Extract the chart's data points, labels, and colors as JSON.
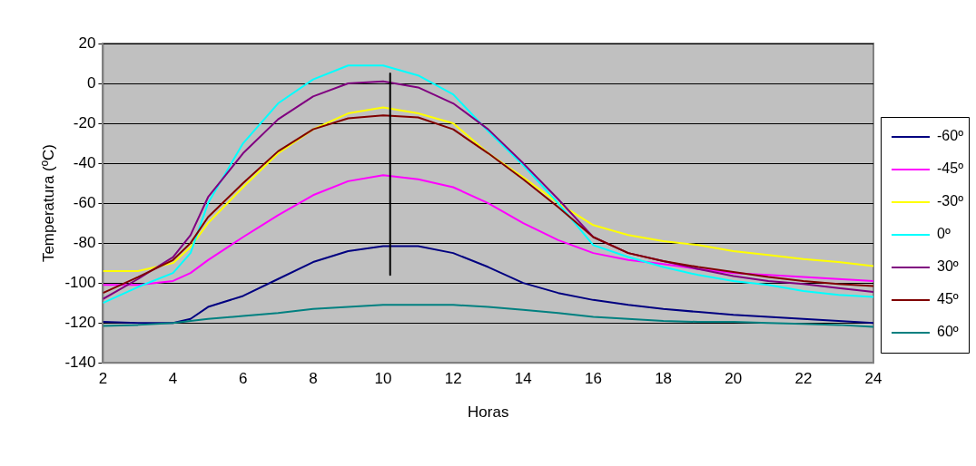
{
  "chart_data": {
    "type": "line",
    "xlabel": "Horas",
    "ylabel": "Temperatura (ºC)",
    "xlim": [
      2,
      24
    ],
    "xticks": [
      2,
      4,
      6,
      8,
      10,
      12,
      14,
      16,
      18,
      20,
      22,
      24
    ],
    "ylim": [
      -140,
      20
    ],
    "yticks": [
      -140,
      -120,
      -100,
      -80,
      -60,
      -40,
      -20,
      0,
      20
    ],
    "grid": "y",
    "legend": "right",
    "marker": "none",
    "line_style": "solid",
    "x": [
      2,
      3,
      4,
      4.5,
      5,
      6,
      7,
      8,
      9,
      10,
      11,
      12,
      13,
      14,
      15,
      16,
      17,
      18,
      19,
      20,
      21,
      22,
      23,
      24
    ],
    "series": [
      {
        "name": "-60º",
        "color": "#000080",
        "values": [
          -119.5,
          -120,
          -120,
          -118,
          -112,
          -106.5,
          -98,
          -89.5,
          -84,
          -81.5,
          -81.5,
          -85,
          -92,
          -100,
          -105,
          -108.5,
          -111,
          -113,
          -114.5,
          -116,
          -117,
          -118,
          -119,
          -120
        ]
      },
      {
        "name": "-45º",
        "color": "#ff00ff",
        "values": [
          -101,
          -101,
          -99,
          -95,
          -88.5,
          -77,
          -66,
          -56,
          -49,
          -46,
          -48,
          -52,
          -60,
          -70,
          -78.5,
          -85,
          -88.5,
          -90.5,
          -93,
          -95,
          -96,
          -97,
          -98,
          -99
        ]
      },
      {
        "name": "-30º",
        "color": "#ffff00",
        "values": [
          -94,
          -94,
          -90,
          -82,
          -70,
          -52,
          -35,
          -23,
          -15,
          -12,
          -15,
          -20,
          -35,
          -47,
          -60,
          -71,
          -76,
          -79,
          -81,
          -84,
          -86,
          -88,
          -89.5,
          -91.5
        ]
      },
      {
        "name": "0º",
        "color": "#00ffff",
        "values": [
          -110,
          -102,
          -95,
          -85,
          -60,
          -30,
          -10,
          2,
          9,
          9,
          4,
          -5.5,
          -24,
          -41,
          -60,
          -81,
          -87,
          -92,
          -96,
          -99,
          -101,
          -104,
          -106,
          -107
        ]
      },
      {
        "name": "30º",
        "color": "#800080",
        "values": [
          -108,
          -98,
          -87,
          -76,
          -57,
          -35,
          -18,
          -6.5,
          0,
          1,
          -2,
          -10,
          -23,
          -40,
          -58,
          -77,
          -85,
          -89,
          -93,
          -96.5,
          -99,
          -100.5,
          -102.5,
          -104.5
        ]
      },
      {
        "name": "45º",
        "color": "#800000",
        "values": [
          -105,
          -97,
          -88.5,
          -80,
          -67,
          -50,
          -34,
          -23,
          -17.5,
          -16,
          -17,
          -23,
          -35,
          -48,
          -62,
          -77,
          -85,
          -89,
          -92,
          -94.5,
          -97,
          -99,
          -100.5,
          -101.5
        ]
      },
      {
        "name": "60º",
        "color": "#008080",
        "values": [
          -121.5,
          -121,
          -120,
          -119,
          -118,
          -116.5,
          -115,
          -113,
          -112,
          -111,
          -111,
          -111,
          -112,
          -113.5,
          -115,
          -117,
          -118,
          -119,
          -119.5,
          -119.5,
          -120,
          -120.5,
          -121,
          -122
        ]
      },
      {
        "color": "#000000",
        "x": [
          10.2,
          10.2
        ],
        "values": [
          5,
          -96
        ]
      }
    ]
  }
}
